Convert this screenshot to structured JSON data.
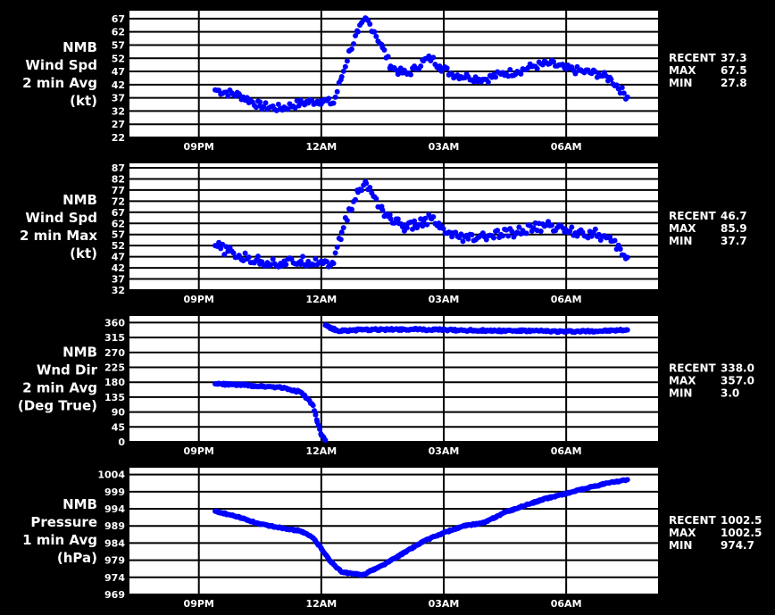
{
  "chart_data": [
    {
      "type": "scatter",
      "ylabel": [
        "NMB",
        "Wind Spd",
        "2 min Avg",
        "(kt)"
      ],
      "yticks": [
        22,
        27,
        32,
        37,
        42,
        47,
        52,
        57,
        62,
        67
      ],
      "ylim": [
        22,
        70
      ],
      "xticks": [
        "09PM",
        "12AM",
        "03AM",
        "06AM"
      ],
      "grid": true,
      "color": "#0000ff",
      "stats": [
        {
          "label": "RECENT",
          "value": "37.3"
        },
        {
          "label": "MAX",
          "value": "67.5"
        },
        {
          "label": "MIN",
          "value": "27.8"
        }
      ],
      "series": [
        {
          "x": [
            -2.6,
            -2,
            -1.5,
            -1,
            -0.5,
            0,
            0.3,
            0.5,
            0.7,
            0.9,
            1.1,
            1.3,
            1.5,
            1.7,
            1.9,
            2.1,
            2.3,
            2.5,
            2.7,
            2.9,
            3.2,
            3.6,
            4,
            4.4,
            4.8,
            5.2,
            5.6,
            6,
            6.4,
            6.8,
            7.1,
            7.5
          ],
          "y": [
            40,
            38,
            34,
            33,
            35,
            36,
            35,
            45,
            55,
            62,
            67,
            62,
            56,
            49,
            47,
            46,
            48,
            51,
            52,
            49,
            46,
            45,
            44,
            46,
            47,
            49,
            50,
            48,
            47,
            46,
            44,
            37.3
          ]
        }
      ]
    },
    {
      "type": "scatter",
      "ylabel": [
        "NMB",
        "Wind Spd",
        "2 min Max",
        "(kt)"
      ],
      "yticks": [
        32,
        37,
        42,
        47,
        52,
        57,
        62,
        67,
        72,
        77,
        82,
        87
      ],
      "ylim": [
        32,
        89
      ],
      "xticks": [
        "09PM",
        "12AM",
        "03AM",
        "06AM"
      ],
      "grid": true,
      "color": "#0000ff",
      "stats": [
        {
          "label": "RECENT",
          "value": "46.7"
        },
        {
          "label": "MAX",
          "value": "85.9"
        },
        {
          "label": "MIN",
          "value": "37.7"
        }
      ],
      "series": [
        {
          "x": [
            -2.6,
            -2,
            -1.5,
            -1,
            -0.5,
            0,
            0.3,
            0.5,
            0.7,
            0.9,
            1.1,
            1.3,
            1.5,
            1.7,
            1.9,
            2.1,
            2.3,
            2.5,
            2.7,
            2.9,
            3.2,
            3.6,
            4,
            4.4,
            4.8,
            5.2,
            5.6,
            6,
            6.4,
            6.8,
            7.1,
            7.5
          ],
          "y": [
            52,
            47,
            45,
            44,
            45,
            45,
            44,
            58,
            68,
            76,
            80,
            74,
            68,
            64,
            62,
            60,
            61,
            63,
            64,
            60,
            56,
            55,
            56,
            57,
            58,
            60,
            61,
            59,
            58,
            57,
            54,
            46.7
          ]
        }
      ]
    },
    {
      "type": "scatter",
      "ylabel": [
        "NMB",
        "Wnd Dir",
        "2 min Avg",
        "(Deg True)"
      ],
      "yticks": [
        0,
        45,
        90,
        135,
        180,
        225,
        270,
        315,
        360
      ],
      "ylim": [
        0,
        380
      ],
      "xticks": [
        "09PM",
        "12AM",
        "03AM",
        "06AM"
      ],
      "grid": true,
      "color": "#0000ff",
      "stats": [
        {
          "label": "RECENT",
          "value": "338.0"
        },
        {
          "label": "MAX",
          "value": "357.0"
        },
        {
          "label": "MIN",
          "value": "3.0"
        }
      ],
      "series": [
        {
          "x": [
            -2.6,
            -2,
            -1.5,
            -1,
            -0.5,
            -0.2,
            -0.1,
            0,
            0.1
          ],
          "y": [
            175,
            172,
            168,
            165,
            150,
            110,
            60,
            20,
            5
          ]
        },
        {
          "x": [
            0.1,
            0.4,
            1,
            2,
            3,
            4,
            5,
            6,
            7,
            7.5
          ],
          "y": [
            352,
            335,
            338,
            340,
            338,
            336,
            335,
            333,
            335,
            338
          ]
        }
      ]
    },
    {
      "type": "scatter",
      "ylabel": [
        "NMB",
        "Pressure",
        "1 min Avg",
        "(hPa)"
      ],
      "yticks": [
        969,
        974,
        979,
        984,
        989,
        994,
        999,
        1004
      ],
      "ylim": [
        969,
        1006
      ],
      "xticks": [
        "09PM",
        "12AM",
        "03AM",
        "06AM"
      ],
      "grid": true,
      "color": "#0000ff",
      "stats": [
        {
          "label": "RECENT",
          "value": "1002.5"
        },
        {
          "label": "MAX",
          "value": "1002.5"
        },
        {
          "label": "MIN",
          "value": "974.7"
        }
      ],
      "series": [
        {
          "x": [
            -2.6,
            -2,
            -1.5,
            -1,
            -0.5,
            -0.2,
            0,
            0.2,
            0.5,
            1,
            1.5,
            2,
            2.5,
            3,
            3.5,
            4,
            4.5,
            5,
            5.5,
            6,
            6.5,
            7,
            7.5
          ],
          "y": [
            993.3,
            991.5,
            989.5,
            988.5,
            987.5,
            985.5,
            982.5,
            979,
            975.5,
            974.7,
            977.5,
            981,
            984.5,
            987,
            989,
            990,
            993,
            995,
            997,
            998.5,
            1000,
            1001.5,
            1002.5
          ]
        }
      ]
    }
  ]
}
